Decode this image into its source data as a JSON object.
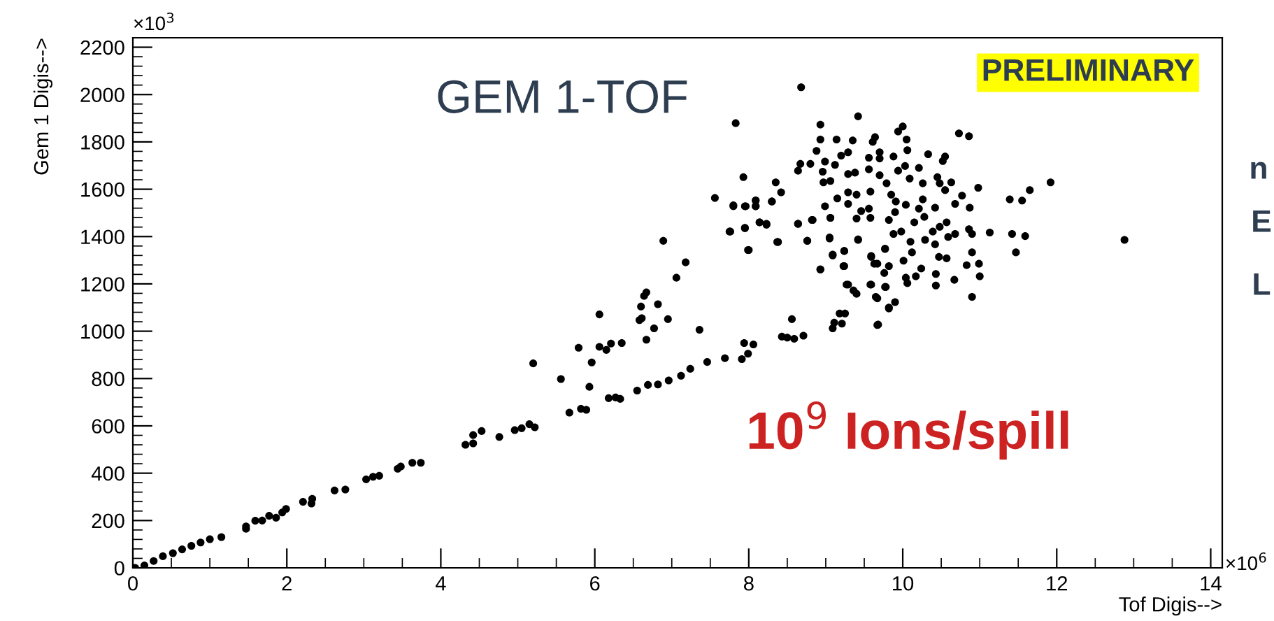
{
  "chart_data": {
    "type": "scatter",
    "xlabel": "Tof Digis-->",
    "ylabel": "Gem 1 Digis-->",
    "annotations": [
      "GEM 1-TOF",
      "PRELIMINARY",
      "10$^{9}$ Ions/spill",
      "n",
      "E",
      "L",
      "×10$^{3}$",
      "×10$^{6}$"
    ],
    "xlim": [
      0,
      14.15
    ],
    "ylim": [
      0,
      2240
    ],
    "xticks": [
      0,
      2,
      4,
      6,
      8,
      10,
      12,
      14
    ],
    "yticks": [
      0,
      200,
      400,
      600,
      800,
      1000,
      1200,
      1400,
      1600,
      1800,
      2000,
      2200
    ],
    "marker": "circle",
    "grid": false,
    "series": [
      {
        "color": "#000000",
        "x": [
          0.03,
          0.15,
          0.27,
          0.39,
          0.52,
          0.64,
          0.76,
          0.88,
          1.0,
          1.15,
          1.47,
          1.47,
          1.59,
          1.68,
          1.77,
          1.86,
          1.94,
          1.99,
          2.21,
          2.32,
          2.33,
          2.62,
          2.76,
          3.03,
          3.12,
          3.2,
          3.44,
          3.48,
          3.63,
          3.74,
          4.32,
          4.42,
          4.42,
          4.53,
          4.76,
          4.96,
          5.05,
          5.15,
          5.22,
          5.2,
          5.56,
          5.67,
          5.82,
          5.89,
          5.93,
          5.96,
          5.79,
          6.06,
          6.06,
          6.15,
          6.21,
          6.35,
          6.18,
          6.27,
          6.33,
          6.58,
          6.61,
          6.6,
          6.64,
          6.67,
          6.82,
          6.77,
          6.95,
          6.67,
          7.06,
          7.18,
          6.89,
          7.36,
          6.55,
          6.69,
          6.82,
          6.96,
          7.12,
          7.24,
          7.46,
          7.69,
          7.91,
          7.99,
          7.94,
          8.06,
          8.43,
          8.5,
          8.59,
          8.71,
          8.56,
          9.09,
          9.11,
          9.18,
          9.25,
          9.21,
          9.67,
          7.99,
          7.75,
          7.95,
          7.8,
          7.96,
          8.09,
          8.09,
          8.14,
          8.23,
          8.3,
          8.38,
          8.64,
          8.76,
          8.82,
          8.93,
          9.05,
          9.06,
          9.09,
          9.23,
          9.24,
          9.27,
          9.36,
          9.42,
          9.59,
          9.63,
          9.59,
          9.67,
          9.77,
          9.82,
          9.77,
          8.68,
          7.83,
          9.42,
          8.93,
          8.93,
          9.14,
          9.35,
          8.88,
          9.64,
          9.61,
          9.94,
          10.0,
          10.05,
          10.73,
          10.86,
          8.67,
          8.8,
          8.64,
          8.99,
          9.12,
          9.2,
          9.29,
          9.56,
          9.7,
          9.7,
          9.88,
          10.06,
          10.33,
          10.55,
          10.52,
          8.96,
          9.06,
          8.97,
          9.29,
          9.38,
          9.56,
          9.7,
          9.79,
          9.94,
          10.03,
          10.21,
          10.09,
          10.26,
          10.45,
          10.48,
          10.63,
          10.55,
          7.93,
          8.35,
          8.42,
          8.09,
          7.56,
          7.8,
          7.95,
          8.09,
          8.3,
          8.14,
          8.23,
          7.76,
          7.95,
          8.0,
          8.37,
          8.64,
          8.83,
          8.76,
          9.05,
          8.99,
          9.15,
          9.06,
          9.29,
          9.29,
          9.4,
          9.58,
          9.46,
          9.56,
          9.4,
          9.58,
          9.42,
          9.09,
          9.24,
          9.24,
          8.93,
          9.29,
          9.4,
          9.65,
          9.78,
          9.58,
          9.59,
          9.67,
          9.77,
          9.82,
          9.76,
          9.88,
          9.82,
          9.9,
          9.85,
          9.91,
          10.04,
          9.98,
          10.01,
          10.04,
          10.06,
          10.12,
          10.1,
          10.17,
          10.24,
          10.15,
          10.21,
          10.26,
          10.28,
          10.29,
          10.39,
          10.42,
          10.48,
          10.42,
          10.47,
          10.57,
          10.43,
          10.43,
          10.67,
          10.57,
          10.59,
          10.68,
          10.68,
          10.77,
          10.87,
          10.86,
          10.9,
          10.9,
          10.83,
          10.99,
          11.0,
          10.9,
          9.82,
          9.9,
          9.68,
          10.98,
          11.13,
          11.39,
          11.55,
          11.65,
          11.92,
          11.42,
          11.59,
          11.47,
          12.88
        ],
        "values": [
          0,
          10,
          29,
          49,
          62,
          78,
          93,
          107,
          121,
          130,
          175,
          165,
          199,
          200,
          220,
          212,
          234,
          249,
          279,
          272,
          292,
          327,
          331,
          374,
          385,
          389,
          419,
          428,
          444,
          444,
          520,
          526,
          561,
          578,
          553,
          582,
          590,
          607,
          594,
          864,
          798,
          656,
          672,
          668,
          765,
          868,
          930,
          1071,
          934,
          921,
          948,
          950,
          717,
          720,
          714,
          1047,
          1055,
          1104,
          1149,
          1164,
          1114,
          1012,
          1051,
          964,
          1226,
          1291,
          1382,
          1006,
          749,
          773,
          775,
          792,
          812,
          841,
          870,
          886,
          882,
          905,
          950,
          944,
          977,
          973,
          968,
          981,
          1051,
          1012,
          1036,
          1075,
          1075,
          1032,
          1026,
          1343,
          1421,
          1437,
          1532,
          1528,
          1528,
          1553,
          1460,
          1450,
          1548,
          1377,
          1454,
          1382,
          1470,
          1261,
          1392,
          1479,
          1324,
          1275,
          1339,
          1197,
          1172,
          1386,
          1318,
          1285,
          1197,
          1139,
          1187,
          1100,
          1349,
          2031,
          1879,
          1908,
          1873,
          1810,
          1810,
          1806,
          1762,
          1820,
          1800,
          1844,
          1865,
          1810,
          1836,
          1824,
          1707,
          1707,
          1678,
          1717,
          1703,
          1742,
          1756,
          1733,
          1756,
          1730,
          1738,
          1765,
          1748,
          1738,
          1719,
          1674,
          1635,
          1629,
          1664,
          1670,
          1684,
          1659,
          1625,
          1678,
          1698,
          1690,
          1645,
          1625,
          1651,
          1625,
          1629,
          1596,
          1651,
          1629,
          1587,
          1552,
          1563,
          1528,
          1528,
          1528,
          1548,
          1460,
          1454,
          1421,
          1435,
          1343,
          1377,
          1454,
          1470,
          1382,
          1396,
          1528,
          1561,
          1479,
          1587,
          1538,
          1577,
          1590,
          1508,
          1518,
          1476,
          1479,
          1388,
          1320,
          1339,
          1275,
          1261,
          1197,
          1158,
          1145,
          1187,
          1197,
          1314,
          1285,
          1347,
          1275,
          1246,
          1411,
          1470,
          1503,
          1577,
          1548,
          1534,
          1421,
          1298,
          1226,
          1203,
          1333,
          1378,
          1232,
          1265,
          1460,
          1518,
          1557,
          1483,
          1386,
          1421,
          1367,
          1441,
          1522,
          1314,
          1308,
          1242,
          1193,
          1217,
          1460,
          1398,
          1411,
          1538,
          1573,
          1522,
          1431,
          1411,
          1333,
          1279,
          1285,
          1232,
          1145,
          1096,
          1123,
          1028,
          1606,
          1417,
          1557,
          1552,
          1596,
          1629,
          1411,
          1402,
          1333,
          1386
        ]
      }
    ]
  }
}
